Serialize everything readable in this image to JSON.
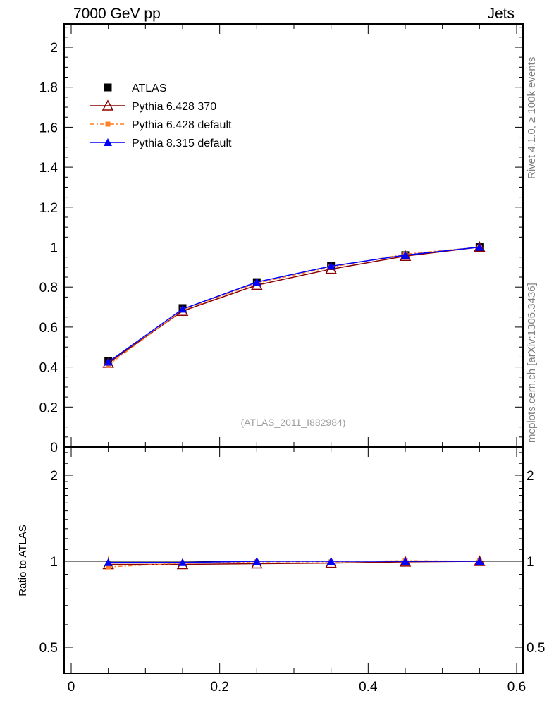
{
  "header": {
    "left_title": "7000 GeV pp",
    "right_title": "Jets"
  },
  "side_labels": {
    "rivet": "Rivet 4.1.0, ≥ 100k events",
    "mcplots": "mcplots.cern.ch [arXiv:1306.3436]"
  },
  "watermark": "(ATLAS_2011_I882984)",
  "colors": {
    "atlas": "#000000",
    "py6_370": "#8b0000",
    "py6_default": "#ff7f24",
    "py8": "#0000ff"
  },
  "chart_data": [
    {
      "type": "line",
      "panel": "main",
      "xlim": [
        -0.01,
        0.61
      ],
      "ylim": [
        0,
        2.12
      ],
      "yticks": [
        0,
        0.2,
        0.4,
        0.6,
        0.8,
        1,
        1.2,
        1.4,
        1.6,
        1.8,
        2
      ],
      "ytick_labels": [
        "0",
        "0.2",
        "0.4",
        "0.6",
        "0.8",
        "1",
        "1.2",
        "1.4",
        "1.6",
        "1.8",
        "2"
      ],
      "x": [
        0.05,
        0.15,
        0.25,
        0.35,
        0.45,
        0.55
      ],
      "legend_position": "top-left",
      "series": [
        {
          "name": "ATLAS",
          "key": "atlas",
          "marker": "square",
          "line": "none",
          "values": [
            0.43,
            0.695,
            0.825,
            0.905,
            0.96,
            1.0
          ]
        },
        {
          "name": "Pythia 6.428 370",
          "key": "py6_370",
          "marker": "open-triangle",
          "line": "solid",
          "values": [
            0.42,
            0.68,
            0.81,
            0.89,
            0.955,
            1.0
          ]
        },
        {
          "name": "Pythia 6.428 default",
          "key": "py6_default",
          "marker": "small-square",
          "line": "dashdot",
          "values": [
            0.41,
            0.685,
            0.82,
            0.9,
            0.965,
            1.0
          ]
        },
        {
          "name": "Pythia 8.315 default",
          "key": "py8",
          "marker": "filled-triangle",
          "line": "solid",
          "values": [
            0.425,
            0.69,
            0.825,
            0.905,
            0.96,
            1.0
          ]
        }
      ]
    },
    {
      "type": "line",
      "panel": "ratio",
      "ylabel": "Ratio to ATLAS",
      "yscale": "log",
      "xlim": [
        -0.01,
        0.61
      ],
      "ylim": [
        0.4,
        2.5
      ],
      "yticks": [
        0.5,
        1,
        2
      ],
      "ytick_labels": [
        "0.5",
        "1",
        "2"
      ],
      "xticks": [
        0,
        0.2,
        0.4,
        0.6
      ],
      "xtick_labels": [
        "0",
        "0.2",
        "0.4",
        "0.6"
      ],
      "x": [
        0.05,
        0.15,
        0.25,
        0.35,
        0.45,
        0.55
      ],
      "series": [
        {
          "name": "Pythia 6.428 370",
          "key": "py6_370",
          "marker": "open-triangle",
          "line": "solid",
          "values": [
            0.975,
            0.975,
            0.98,
            0.985,
            0.995,
            1.0
          ]
        },
        {
          "name": "Pythia 6.428 default",
          "key": "py6_default",
          "marker": "small-square",
          "line": "dashdot",
          "values": [
            0.955,
            0.985,
            0.995,
            0.995,
            1.005,
            1.0
          ]
        },
        {
          "name": "Pythia 8.315 default",
          "key": "py8",
          "marker": "filled-triangle",
          "line": "solid",
          "values": [
            0.99,
            0.99,
            1.0,
            1.0,
            1.0,
            1.0
          ]
        }
      ]
    }
  ]
}
